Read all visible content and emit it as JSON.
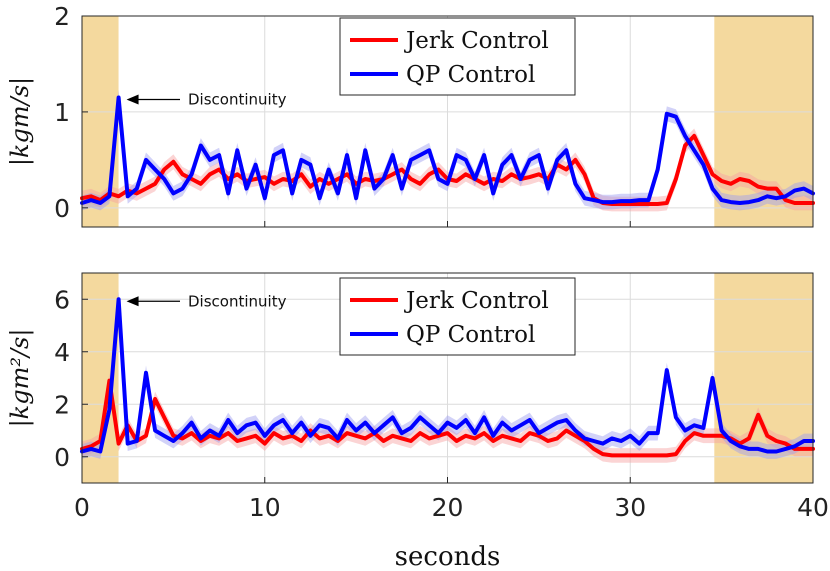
{
  "chart_data": [
    {
      "type": "line",
      "ylabel": "|kgm/s|",
      "xlabel": "",
      "xlim": [
        0,
        40
      ],
      "ylim": [
        -0.2,
        2
      ],
      "xticks": [
        "0",
        "10",
        "20",
        "30",
        "40"
      ],
      "yticks": [
        "0",
        "1",
        "2"
      ],
      "shaded_regions": [
        [
          0,
          2
        ],
        [
          34.6,
          40
        ]
      ],
      "annotation": {
        "text": "Discontinuity",
        "x": 2.0,
        "y": 1.15
      },
      "legend": {
        "placement": "top-center",
        "entries": [
          "Jerk Control",
          "QP Control"
        ]
      },
      "series": [
        {
          "name": "Jerk Control",
          "color": "#ff0000",
          "x": [
            0,
            0.5,
            1,
            1.5,
            2,
            2.5,
            3,
            3.5,
            4,
            4.5,
            5,
            5.5,
            6,
            6.5,
            7,
            7.5,
            8,
            8.5,
            9,
            9.5,
            10,
            10.5,
            11,
            11.5,
            12,
            12.5,
            13,
            13.5,
            14,
            14.5,
            15,
            15.5,
            16,
            16.5,
            17,
            17.5,
            18,
            18.5,
            19,
            19.5,
            20,
            20.5,
            21,
            21.5,
            22,
            22.5,
            23,
            23.5,
            24,
            24.5,
            25,
            25.5,
            26,
            26.5,
            27,
            27.5,
            28,
            28.5,
            29,
            29.5,
            30,
            30.5,
            31,
            31.5,
            32,
            32.5,
            33,
            33.5,
            34,
            34.5,
            35,
            35.5,
            36,
            36.5,
            37,
            37.5,
            38,
            38.5,
            39,
            39.5,
            40
          ],
          "values": [
            0.1,
            0.12,
            0.08,
            0.15,
            0.12,
            0.18,
            0.15,
            0.2,
            0.25,
            0.4,
            0.48,
            0.35,
            0.3,
            0.25,
            0.35,
            0.4,
            0.3,
            0.35,
            0.28,
            0.3,
            0.32,
            0.25,
            0.3,
            0.28,
            0.35,
            0.22,
            0.3,
            0.25,
            0.3,
            0.35,
            0.25,
            0.3,
            0.28,
            0.3,
            0.35,
            0.4,
            0.3,
            0.25,
            0.35,
            0.4,
            0.3,
            0.28,
            0.35,
            0.3,
            0.25,
            0.3,
            0.28,
            0.35,
            0.3,
            0.32,
            0.35,
            0.3,
            0.45,
            0.4,
            0.5,
            0.35,
            0.1,
            0.05,
            0.04,
            0.04,
            0.04,
            0.04,
            0.04,
            0.04,
            0.05,
            0.3,
            0.65,
            0.75,
            0.55,
            0.35,
            0.28,
            0.25,
            0.3,
            0.28,
            0.22,
            0.2,
            0.2,
            0.08,
            0.05,
            0.05,
            0.05
          ]
        },
        {
          "name": "QP Control",
          "color": "#0000ff",
          "x": [
            0,
            0.5,
            1,
            1.5,
            2,
            2.5,
            3,
            3.5,
            4,
            4.5,
            5,
            5.5,
            6,
            6.5,
            7,
            7.5,
            8,
            8.5,
            9,
            9.5,
            10,
            10.5,
            11,
            11.5,
            12,
            12.5,
            13,
            13.5,
            14,
            14.5,
            15,
            15.5,
            16,
            16.5,
            17,
            17.5,
            18,
            18.5,
            19,
            19.5,
            20,
            20.5,
            21,
            21.5,
            22,
            22.5,
            23,
            23.5,
            24,
            24.5,
            25,
            25.5,
            26,
            26.5,
            27,
            27.5,
            28,
            28.5,
            29,
            29.5,
            30,
            30.5,
            31,
            31.5,
            32,
            32.5,
            33,
            33.5,
            34,
            34.5,
            35,
            35.5,
            36,
            36.5,
            37,
            37.5,
            38,
            38.5,
            39,
            39.5,
            40
          ],
          "values": [
            0.05,
            0.08,
            0.05,
            0.12,
            1.15,
            0.12,
            0.2,
            0.5,
            0.4,
            0.3,
            0.15,
            0.2,
            0.35,
            0.65,
            0.5,
            0.55,
            0.15,
            0.6,
            0.2,
            0.45,
            0.1,
            0.55,
            0.6,
            0.15,
            0.5,
            0.45,
            0.1,
            0.4,
            0.15,
            0.55,
            0.1,
            0.6,
            0.2,
            0.3,
            0.55,
            0.2,
            0.5,
            0.55,
            0.6,
            0.3,
            0.25,
            0.55,
            0.5,
            0.3,
            0.55,
            0.15,
            0.45,
            0.55,
            0.3,
            0.5,
            0.55,
            0.2,
            0.5,
            0.6,
            0.25,
            0.1,
            0.08,
            0.06,
            0.06,
            0.07,
            0.07,
            0.08,
            0.08,
            0.4,
            0.98,
            0.95,
            0.75,
            0.6,
            0.45,
            0.2,
            0.08,
            0.06,
            0.05,
            0.06,
            0.08,
            0.12,
            0.1,
            0.12,
            0.18,
            0.2,
            0.15
          ]
        }
      ]
    },
    {
      "type": "line",
      "ylabel": "|kgm²/s|",
      "xlabel": "seconds",
      "xlim": [
        0,
        40
      ],
      "ylim": [
        -1,
        7
      ],
      "xticks": [
        "0",
        "10",
        "20",
        "30",
        "40"
      ],
      "yticks": [
        "0",
        "2",
        "4",
        "6"
      ],
      "shaded_regions": [
        [
          0,
          2
        ],
        [
          34.6,
          40
        ]
      ],
      "annotation": {
        "text": "Discontinuity",
        "x": 2.0,
        "y": 6.0
      },
      "legend": {
        "placement": "top-center",
        "entries": [
          "Jerk Control",
          "QP Control"
        ]
      },
      "series": [
        {
          "name": "Jerk Control",
          "color": "#ff0000",
          "x": [
            0,
            0.5,
            1,
            1.5,
            2,
            2.5,
            3,
            3.5,
            4,
            4.5,
            5,
            5.5,
            6,
            6.5,
            7,
            7.5,
            8,
            8.5,
            9,
            9.5,
            10,
            10.5,
            11,
            11.5,
            12,
            12.5,
            13,
            13.5,
            14,
            14.5,
            15,
            15.5,
            16,
            16.5,
            17,
            17.5,
            18,
            18.5,
            19,
            19.5,
            20,
            20.5,
            21,
            21.5,
            22,
            22.5,
            23,
            23.5,
            24,
            24.5,
            25,
            25.5,
            26,
            26.5,
            27,
            27.5,
            28,
            28.5,
            29,
            29.5,
            30,
            30.5,
            31,
            31.5,
            32,
            32.5,
            33,
            33.5,
            34,
            34.5,
            35,
            35.5,
            36,
            36.5,
            37,
            37.5,
            38,
            38.5,
            39,
            39.5,
            40
          ],
          "values": [
            0.3,
            0.4,
            0.6,
            2.9,
            0.5,
            1.2,
            0.6,
            0.8,
            2.2,
            1.5,
            0.8,
            0.7,
            0.9,
            0.6,
            0.8,
            0.7,
            0.9,
            0.6,
            0.7,
            0.8,
            0.5,
            0.9,
            0.7,
            0.8,
            0.6,
            1.0,
            0.7,
            0.8,
            0.6,
            0.9,
            0.8,
            0.7,
            0.9,
            0.6,
            0.8,
            0.7,
            0.6,
            0.9,
            0.7,
            0.8,
            0.9,
            0.6,
            0.8,
            0.7,
            0.9,
            0.6,
            0.8,
            0.7,
            0.6,
            0.9,
            0.8,
            0.6,
            0.7,
            1.0,
            0.8,
            0.6,
            0.3,
            0.1,
            0.05,
            0.05,
            0.05,
            0.05,
            0.05,
            0.05,
            0.05,
            0.1,
            0.6,
            0.9,
            0.8,
            0.8,
            0.8,
            0.7,
            0.5,
            0.7,
            1.6,
            0.8,
            0.6,
            0.5,
            0.3,
            0.3,
            0.3
          ]
        },
        {
          "name": "QP Control",
          "color": "#0000ff",
          "x": [
            0,
            0.5,
            1,
            1.5,
            2,
            2.5,
            3,
            3.5,
            4,
            4.5,
            5,
            5.5,
            6,
            6.5,
            7,
            7.5,
            8,
            8.5,
            9,
            9.5,
            10,
            10.5,
            11,
            11.5,
            12,
            12.5,
            13,
            13.5,
            14,
            14.5,
            15,
            15.5,
            16,
            16.5,
            17,
            17.5,
            18,
            18.5,
            19,
            19.5,
            20,
            20.5,
            21,
            21.5,
            22,
            22.5,
            23,
            23.5,
            24,
            24.5,
            25,
            25.5,
            26,
            26.5,
            27,
            27.5,
            28,
            28.5,
            29,
            29.5,
            30,
            30.5,
            31,
            31.5,
            32,
            32.5,
            33,
            33.5,
            34,
            34.5,
            35,
            35.5,
            36,
            36.5,
            37,
            37.5,
            38,
            38.5,
            39,
            39.5,
            40
          ],
          "values": [
            0.2,
            0.3,
            0.2,
            1.8,
            6.0,
            0.5,
            0.6,
            3.2,
            1.0,
            0.8,
            0.6,
            0.9,
            1.3,
            0.7,
            1.0,
            0.8,
            1.4,
            0.9,
            1.2,
            1.3,
            0.8,
            1.2,
            1.4,
            0.9,
            1.3,
            0.8,
            1.2,
            1.1,
            0.7,
            1.4,
            1.0,
            1.3,
            0.9,
            1.2,
            1.5,
            0.9,
            1.1,
            1.5,
            1.2,
            0.9,
            1.3,
            1.1,
            1.4,
            0.9,
            1.5,
            0.8,
            1.3,
            1.0,
            1.2,
            1.4,
            0.9,
            1.1,
            1.3,
            1.4,
            1.0,
            0.7,
            0.6,
            0.5,
            0.7,
            0.6,
            0.8,
            0.5,
            0.9,
            0.9,
            3.3,
            1.5,
            1.0,
            1.2,
            1.1,
            3.0,
            1.0,
            0.6,
            0.4,
            0.3,
            0.3,
            0.2,
            0.2,
            0.3,
            0.4,
            0.6,
            0.6
          ]
        }
      ]
    }
  ]
}
